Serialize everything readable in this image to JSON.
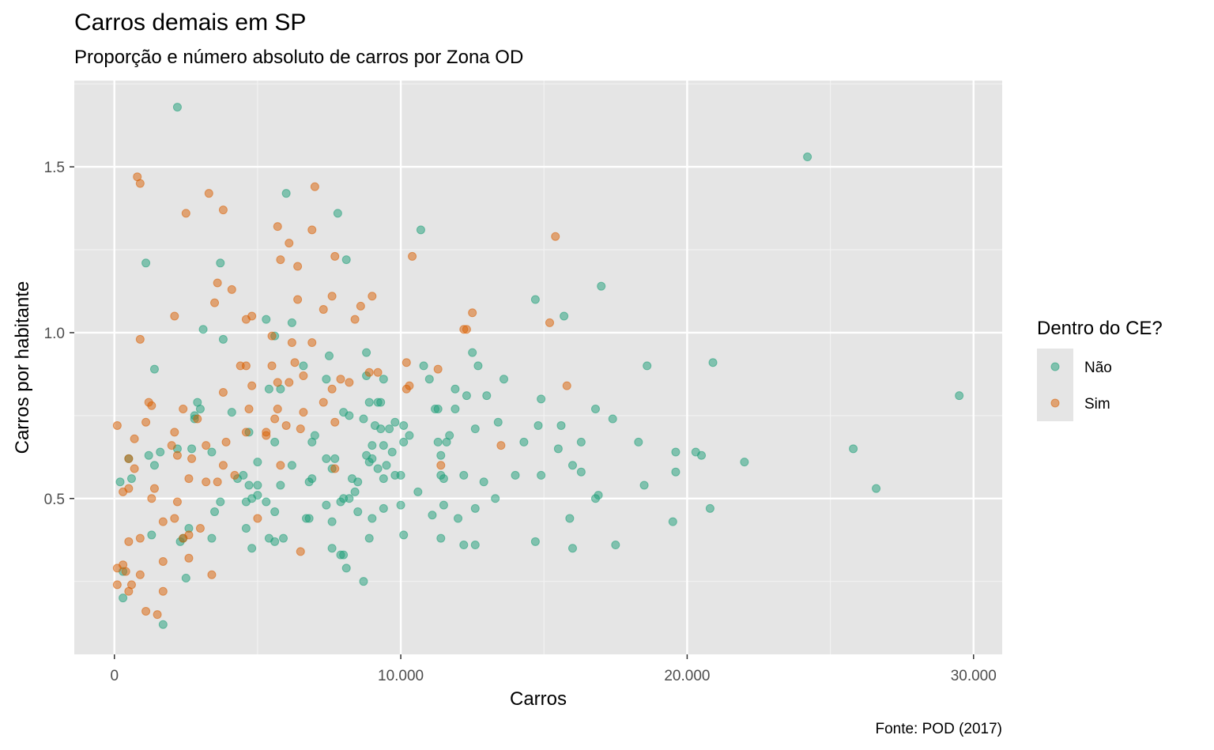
{
  "chart_data": {
    "type": "scatter",
    "title": "Carros demais em SP",
    "subtitle": "Proporção e número absoluto de carros por Zona OD",
    "xlabel": "Carros",
    "ylabel": "Carros por habitante",
    "caption": "Fonte: POD (2017)",
    "xlim": [
      -1400,
      31000
    ],
    "ylim": [
      0.03,
      1.76
    ],
    "x_ticks": [
      {
        "value": 0,
        "label": "0"
      },
      {
        "value": 10000,
        "label": "10.000"
      },
      {
        "value": 20000,
        "label": "20.000"
      },
      {
        "value": 30000,
        "label": "30.000"
      }
    ],
    "y_ticks": [
      {
        "value": 0.5,
        "label": "0.5"
      },
      {
        "value": 1.0,
        "label": "1.0"
      },
      {
        "value": 1.5,
        "label": "1.5"
      }
    ],
    "grid": true,
    "legend": {
      "title": "Dentro do CE?",
      "position": "right"
    },
    "series": [
      {
        "name": "Não",
        "color": "#1b9e77",
        "points": [
          [
            2200,
            1.68
          ],
          [
            24200,
            1.53
          ],
          [
            6000,
            1.42
          ],
          [
            7800,
            1.36
          ],
          [
            10700,
            1.31
          ],
          [
            1100,
            1.21
          ],
          [
            3700,
            1.21
          ],
          [
            8100,
            1.22
          ],
          [
            17000,
            1.14
          ],
          [
            14700,
            1.1
          ],
          [
            15700,
            1.05
          ],
          [
            5300,
            1.04
          ],
          [
            6200,
            1.03
          ],
          [
            3100,
            1.01
          ],
          [
            3800,
            0.98
          ],
          [
            5600,
            0.99
          ],
          [
            7500,
            0.93
          ],
          [
            8800,
            0.94
          ],
          [
            12500,
            0.94
          ],
          [
            1400,
            0.89
          ],
          [
            6600,
            0.9
          ],
          [
            10800,
            0.9
          ],
          [
            12700,
            0.9
          ],
          [
            18600,
            0.9
          ],
          [
            20900,
            0.91
          ],
          [
            5800,
            0.83
          ],
          [
            7400,
            0.86
          ],
          [
            8800,
            0.87
          ],
          [
            9400,
            0.86
          ],
          [
            11000,
            0.86
          ],
          [
            11900,
            0.83
          ],
          [
            12300,
            0.81
          ],
          [
            13000,
            0.81
          ],
          [
            13600,
            0.86
          ],
          [
            5400,
            0.83
          ],
          [
            2900,
            0.79
          ],
          [
            3000,
            0.77
          ],
          [
            4100,
            0.76
          ],
          [
            8000,
            0.76
          ],
          [
            8200,
            0.75
          ],
          [
            8900,
            0.79
          ],
          [
            9200,
            0.79
          ],
          [
            9300,
            0.79
          ],
          [
            11200,
            0.77
          ],
          [
            11300,
            0.77
          ],
          [
            11900,
            0.77
          ],
          [
            14900,
            0.8
          ],
          [
            16800,
            0.77
          ],
          [
            29500,
            0.81
          ],
          [
            2800,
            0.74
          ],
          [
            2800,
            0.75
          ],
          [
            4700,
            0.7
          ],
          [
            7000,
            0.69
          ],
          [
            8700,
            0.74
          ],
          [
            9100,
            0.72
          ],
          [
            9300,
            0.71
          ],
          [
            9600,
            0.71
          ],
          [
            9800,
            0.73
          ],
          [
            10100,
            0.72
          ],
          [
            10300,
            0.69
          ],
          [
            11700,
            0.69
          ],
          [
            12600,
            0.71
          ],
          [
            13400,
            0.73
          ],
          [
            14800,
            0.72
          ],
          [
            15600,
            0.72
          ],
          [
            17400,
            0.74
          ],
          [
            500,
            0.62
          ],
          [
            1200,
            0.63
          ],
          [
            1600,
            0.64
          ],
          [
            2200,
            0.65
          ],
          [
            2700,
            0.65
          ],
          [
            3400,
            0.64
          ],
          [
            5000,
            0.61
          ],
          [
            5600,
            0.67
          ],
          [
            6900,
            0.67
          ],
          [
            7400,
            0.62
          ],
          [
            7700,
            0.62
          ],
          [
            8800,
            0.63
          ],
          [
            9000,
            0.66
          ],
          [
            9400,
            0.66
          ],
          [
            9700,
            0.64
          ],
          [
            10100,
            0.67
          ],
          [
            11300,
            0.67
          ],
          [
            11400,
            0.63
          ],
          [
            11600,
            0.67
          ],
          [
            14300,
            0.67
          ],
          [
            15500,
            0.65
          ],
          [
            16300,
            0.67
          ],
          [
            18300,
            0.67
          ],
          [
            19600,
            0.64
          ],
          [
            20300,
            0.64
          ],
          [
            20500,
            0.63
          ],
          [
            22000,
            0.61
          ],
          [
            25800,
            0.65
          ],
          [
            200,
            0.55
          ],
          [
            600,
            0.56
          ],
          [
            1400,
            0.6
          ],
          [
            4300,
            0.56
          ],
          [
            4500,
            0.57
          ],
          [
            4700,
            0.54
          ],
          [
            5000,
            0.54
          ],
          [
            5800,
            0.54
          ],
          [
            6200,
            0.6
          ],
          [
            6800,
            0.55
          ],
          [
            6900,
            0.56
          ],
          [
            7600,
            0.59
          ],
          [
            8300,
            0.56
          ],
          [
            8500,
            0.55
          ],
          [
            8900,
            0.61
          ],
          [
            9000,
            0.62
          ],
          [
            9200,
            0.59
          ],
          [
            9400,
            0.56
          ],
          [
            9500,
            0.6
          ],
          [
            9800,
            0.57
          ],
          [
            10000,
            0.57
          ],
          [
            11400,
            0.57
          ],
          [
            11500,
            0.56
          ],
          [
            12200,
            0.57
          ],
          [
            12900,
            0.55
          ],
          [
            14000,
            0.57
          ],
          [
            14900,
            0.57
          ],
          [
            16000,
            0.6
          ],
          [
            16300,
            0.58
          ],
          [
            18500,
            0.54
          ],
          [
            19600,
            0.58
          ],
          [
            26600,
            0.53
          ],
          [
            3500,
            0.46
          ],
          [
            3700,
            0.49
          ],
          [
            4600,
            0.49
          ],
          [
            4800,
            0.5
          ],
          [
            5000,
            0.51
          ],
          [
            5300,
            0.49
          ],
          [
            5600,
            0.46
          ],
          [
            7400,
            0.48
          ],
          [
            7900,
            0.49
          ],
          [
            8000,
            0.5
          ],
          [
            8200,
            0.5
          ],
          [
            8400,
            0.52
          ],
          [
            8500,
            0.46
          ],
          [
            9000,
            0.44
          ],
          [
            9400,
            0.47
          ],
          [
            10000,
            0.48
          ],
          [
            10600,
            0.52
          ],
          [
            11100,
            0.45
          ],
          [
            11500,
            0.48
          ],
          [
            12600,
            0.47
          ],
          [
            13300,
            0.5
          ],
          [
            16900,
            0.51
          ],
          [
            16800,
            0.5
          ],
          [
            20800,
            0.47
          ],
          [
            19500,
            0.43
          ],
          [
            3400,
            0.38
          ],
          [
            4600,
            0.41
          ],
          [
            4800,
            0.35
          ],
          [
            5400,
            0.38
          ],
          [
            5600,
            0.37
          ],
          [
            5900,
            0.38
          ],
          [
            6700,
            0.44
          ],
          [
            6800,
            0.44
          ],
          [
            7600,
            0.43
          ],
          [
            7600,
            0.35
          ],
          [
            7900,
            0.33
          ],
          [
            8000,
            0.33
          ],
          [
            8100,
            0.29
          ],
          [
            8900,
            0.38
          ],
          [
            10100,
            0.39
          ],
          [
            11400,
            0.38
          ],
          [
            12000,
            0.44
          ],
          [
            12200,
            0.36
          ],
          [
            12600,
            0.36
          ],
          [
            14700,
            0.37
          ],
          [
            15900,
            0.44
          ],
          [
            16000,
            0.35
          ],
          [
            17500,
            0.36
          ],
          [
            2500,
            0.26
          ],
          [
            8700,
            0.25
          ],
          [
            1700,
            0.12
          ],
          [
            300,
            0.2
          ],
          [
            2300,
            0.37
          ],
          [
            2400,
            0.38
          ],
          [
            2600,
            0.41
          ],
          [
            1300,
            0.39
          ],
          [
            300,
            0.28
          ]
        ]
      },
      {
        "name": "Sim",
        "color": "#d95f02",
        "points": [
          [
            800,
            1.47
          ],
          [
            900,
            1.45
          ],
          [
            3300,
            1.42
          ],
          [
            2500,
            1.36
          ],
          [
            3800,
            1.37
          ],
          [
            7000,
            1.44
          ],
          [
            5700,
            1.32
          ],
          [
            6100,
            1.27
          ],
          [
            6900,
            1.31
          ],
          [
            15400,
            1.29
          ],
          [
            5800,
            1.22
          ],
          [
            6400,
            1.2
          ],
          [
            7700,
            1.23
          ],
          [
            10400,
            1.23
          ],
          [
            3600,
            1.15
          ],
          [
            4100,
            1.13
          ],
          [
            3500,
            1.09
          ],
          [
            6400,
            1.1
          ],
          [
            7300,
            1.07
          ],
          [
            7600,
            1.11
          ],
          [
            8600,
            1.08
          ],
          [
            9000,
            1.11
          ],
          [
            2100,
            1.05
          ],
          [
            4600,
            1.04
          ],
          [
            4800,
            1.05
          ],
          [
            8400,
            1.04
          ],
          [
            12500,
            1.06
          ],
          [
            15200,
            1.03
          ],
          [
            12200,
            1.01
          ],
          [
            12300,
            1.01
          ],
          [
            900,
            0.98
          ],
          [
            5500,
            0.99
          ],
          [
            6200,
            0.97
          ],
          [
            6900,
            0.97
          ],
          [
            4400,
            0.9
          ],
          [
            4600,
            0.9
          ],
          [
            5500,
            0.9
          ],
          [
            6300,
            0.91
          ],
          [
            6600,
            0.87
          ],
          [
            5700,
            0.85
          ],
          [
            6100,
            0.85
          ],
          [
            7600,
            0.83
          ],
          [
            7900,
            0.86
          ],
          [
            8200,
            0.85
          ],
          [
            8900,
            0.88
          ],
          [
            9200,
            0.88
          ],
          [
            10200,
            0.91
          ],
          [
            10200,
            0.83
          ],
          [
            10300,
            0.84
          ],
          [
            11300,
            0.89
          ],
          [
            15800,
            0.84
          ],
          [
            3800,
            0.82
          ],
          [
            4800,
            0.84
          ],
          [
            1200,
            0.79
          ],
          [
            1300,
            0.78
          ],
          [
            2400,
            0.77
          ],
          [
            5700,
            0.77
          ],
          [
            6600,
            0.76
          ],
          [
            4700,
            0.77
          ],
          [
            7300,
            0.79
          ],
          [
            7700,
            0.73
          ],
          [
            1100,
            0.73
          ],
          [
            2900,
            0.74
          ],
          [
            5600,
            0.74
          ],
          [
            2100,
            0.7
          ],
          [
            4600,
            0.7
          ],
          [
            5300,
            0.7
          ],
          [
            6000,
            0.72
          ],
          [
            6500,
            0.71
          ],
          [
            100,
            0.72
          ],
          [
            700,
            0.68
          ],
          [
            5300,
            0.69
          ],
          [
            13500,
            0.66
          ],
          [
            2000,
            0.66
          ],
          [
            3200,
            0.66
          ],
          [
            3900,
            0.67
          ],
          [
            500,
            0.62
          ],
          [
            2200,
            0.63
          ],
          [
            2700,
            0.62
          ],
          [
            700,
            0.59
          ],
          [
            5800,
            0.6
          ],
          [
            7700,
            0.59
          ],
          [
            11400,
            0.6
          ],
          [
            4200,
            0.57
          ],
          [
            3600,
            0.55
          ],
          [
            3200,
            0.55
          ],
          [
            2600,
            0.56
          ],
          [
            1400,
            0.53
          ],
          [
            500,
            0.53
          ],
          [
            300,
            0.52
          ],
          [
            1300,
            0.5
          ],
          [
            2200,
            0.49
          ],
          [
            5000,
            0.44
          ],
          [
            2100,
            0.44
          ],
          [
            1700,
            0.43
          ],
          [
            3000,
            0.41
          ],
          [
            2600,
            0.39
          ],
          [
            2400,
            0.38
          ],
          [
            900,
            0.38
          ],
          [
            500,
            0.37
          ],
          [
            2600,
            0.32
          ],
          [
            1700,
            0.31
          ],
          [
            300,
            0.3
          ],
          [
            100,
            0.29
          ],
          [
            400,
            0.28
          ],
          [
            900,
            0.27
          ],
          [
            3400,
            0.27
          ],
          [
            100,
            0.24
          ],
          [
            600,
            0.24
          ],
          [
            500,
            0.22
          ],
          [
            1700,
            0.22
          ],
          [
            1100,
            0.16
          ],
          [
            1500,
            0.15
          ],
          [
            6500,
            0.34
          ],
          [
            3800,
            0.6
          ]
        ]
      }
    ]
  }
}
